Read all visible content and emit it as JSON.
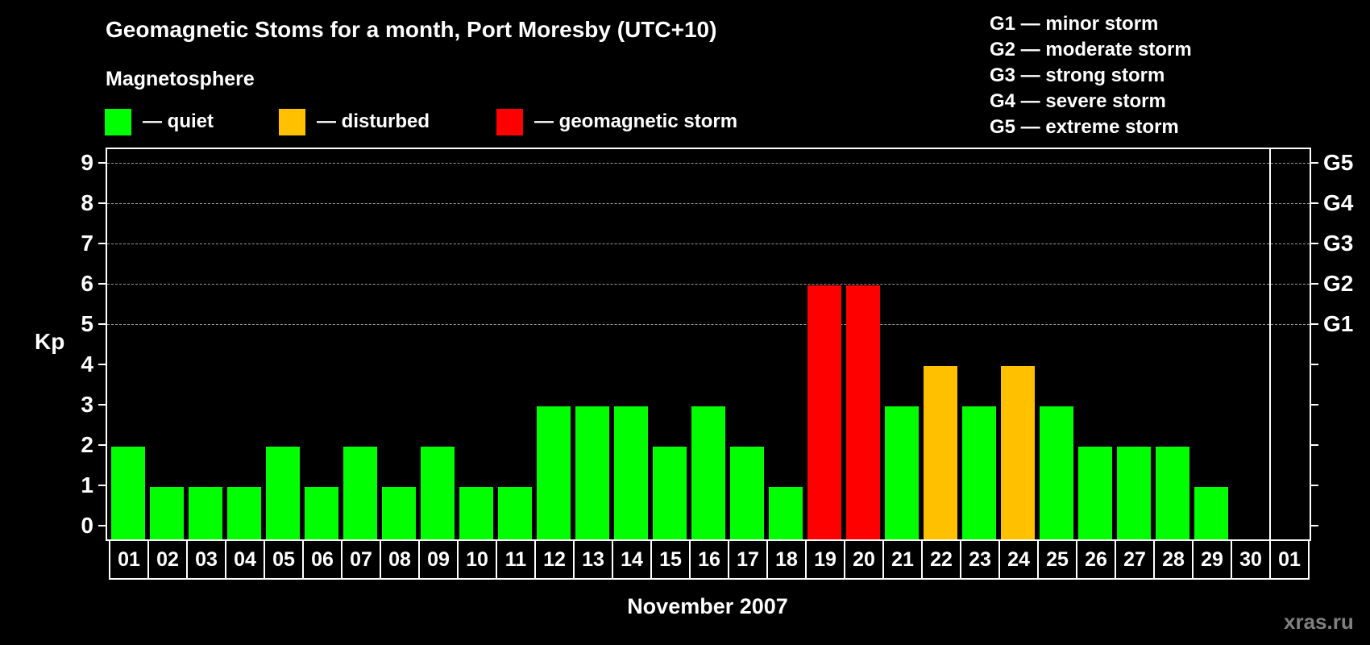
{
  "header": {
    "title": "Geomagnetic Stoms for a month, Port Moresby (UTC+10)",
    "subtitle": "Magnetosphere"
  },
  "legend": [
    {
      "label": "— quiet",
      "color": "#00ff00"
    },
    {
      "label": "— disturbed",
      "color": "#ffc000"
    },
    {
      "label": "— geomagnetic storm",
      "color": "#ff0000"
    }
  ],
  "g_legend": [
    "G1 — minor storm",
    "G2 — moderate storm",
    "G3 — strong storm",
    "G4 — severe storm",
    "G5 — extreme storm"
  ],
  "watermark": "xras.ru",
  "chart_data": {
    "type": "bar",
    "title": "Geomagnetic Stoms for a month, Port Moresby (UTC+10)",
    "subtitle": "Magnetosphere",
    "xlabel": "November 2007",
    "ylabel": "Kp",
    "ylim": [
      0,
      9
    ],
    "yticks": [
      "0",
      "1",
      "2",
      "3",
      "4",
      "5",
      "6",
      "7",
      "8",
      "9"
    ],
    "right_axis_labels": [
      {
        "kp": 5,
        "label": "G1"
      },
      {
        "kp": 6,
        "label": "G2"
      },
      {
        "kp": 7,
        "label": "G3"
      },
      {
        "kp": 8,
        "label": "G4"
      },
      {
        "kp": 9,
        "label": "G5"
      }
    ],
    "grid": "dashed horizontal at Kp 5–9",
    "categories": [
      "01",
      "02",
      "03",
      "04",
      "05",
      "06",
      "07",
      "08",
      "09",
      "10",
      "11",
      "12",
      "13",
      "14",
      "15",
      "16",
      "17",
      "18",
      "19",
      "20",
      "21",
      "22",
      "23",
      "24",
      "25",
      "26",
      "27",
      "28",
      "29",
      "30",
      "01"
    ],
    "values": [
      2,
      1,
      1,
      1,
      2,
      1,
      2,
      1,
      2,
      1,
      1,
      3,
      3,
      3,
      2,
      3,
      2,
      1,
      6,
      6,
      3,
      4,
      3,
      4,
      3,
      2,
      2,
      2,
      1,
      0,
      null
    ],
    "status": [
      "quiet",
      "quiet",
      "quiet",
      "quiet",
      "quiet",
      "quiet",
      "quiet",
      "quiet",
      "quiet",
      "quiet",
      "quiet",
      "quiet",
      "quiet",
      "quiet",
      "quiet",
      "quiet",
      "quiet",
      "quiet",
      "storm",
      "storm",
      "quiet",
      "disturbed",
      "quiet",
      "disturbed",
      "quiet",
      "quiet",
      "quiet",
      "quiet",
      "quiet",
      "none",
      "none"
    ],
    "colors": {
      "quiet": "#00ff00",
      "disturbed": "#ffc000",
      "storm": "#ff0000"
    }
  }
}
